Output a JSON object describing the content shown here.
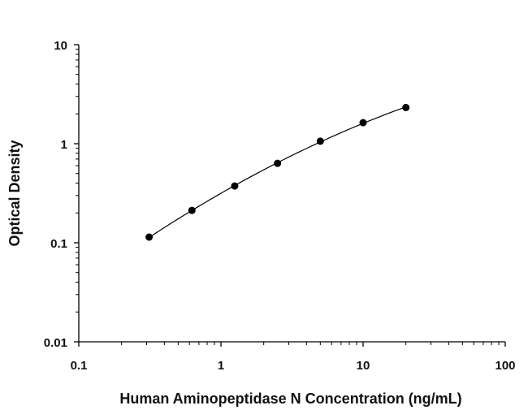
{
  "chart_data": {
    "type": "scatter",
    "title": "",
    "xlabel": "Human Aminopeptidase N Concentration (ng/mL)",
    "ylabel": "Optical Density",
    "x_scale": "log",
    "y_scale": "log",
    "xlim": [
      0.1,
      100
    ],
    "ylim": [
      0.01,
      10
    ],
    "x_ticks": [
      "0.1",
      "1",
      "10",
      "100"
    ],
    "y_ticks": [
      "0.01",
      "0.1",
      "1",
      "10"
    ],
    "grid": false,
    "legend": "none",
    "series": [
      {
        "x": [
          0.3125,
          0.625,
          1.25,
          2.5,
          5,
          10,
          20
        ],
        "y": [
          0.114,
          0.212,
          0.374,
          0.634,
          1.06,
          1.63,
          2.32
        ],
        "marker": "filled-circle",
        "fit_curve": true,
        "color": "#000000"
      }
    ]
  }
}
